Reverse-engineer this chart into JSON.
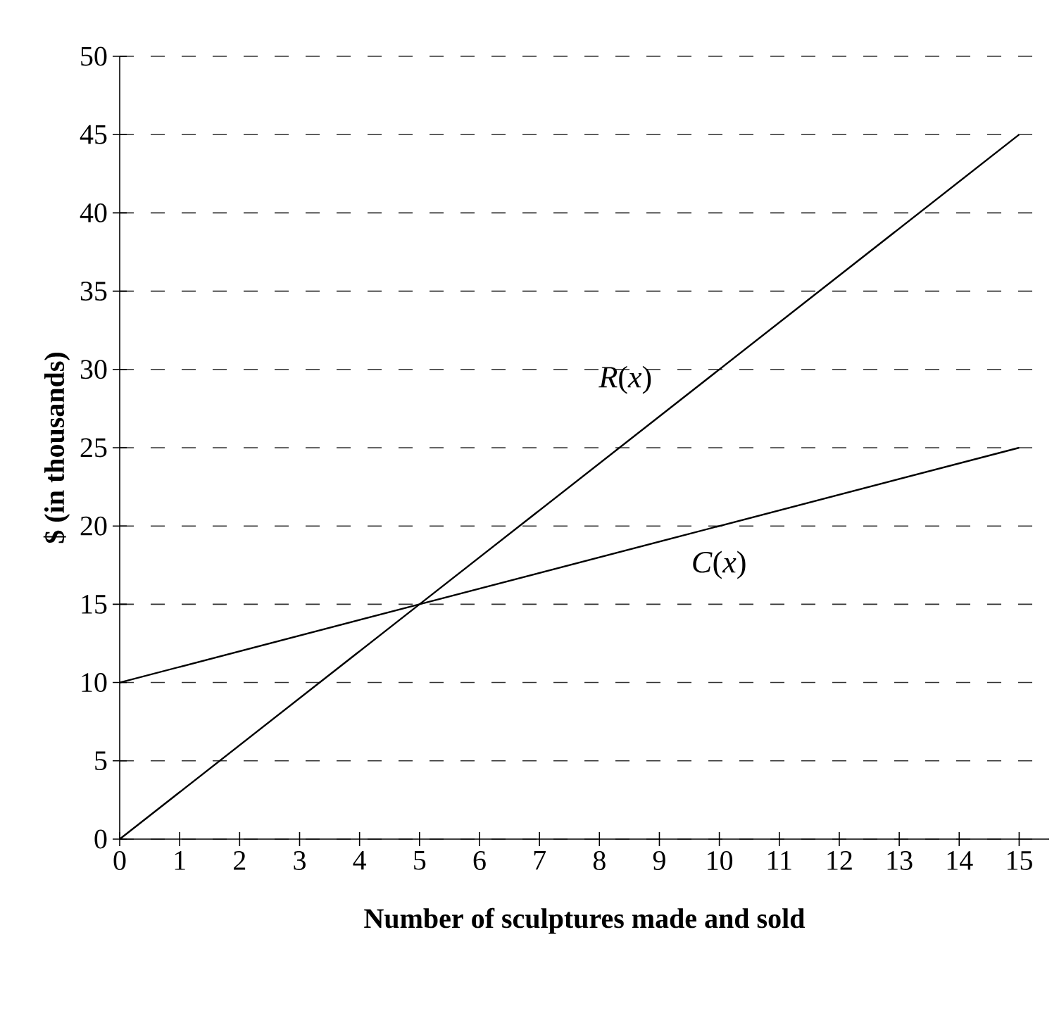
{
  "chart_data": {
    "type": "line",
    "xlabel": "Number of sculptures made and sold",
    "ylabel": "$ (in thousands)",
    "x": [
      0,
      5,
      15
    ],
    "series": [
      {
        "name": "*R*(*x*)",
        "color": "#000000",
        "values": [
          0,
          15,
          45
        ]
      },
      {
        "name": "*C*(*x*)",
        "color": "#000000",
        "values": [
          10,
          15,
          25
        ]
      }
    ],
    "xlim": [
      0,
      15.5
    ],
    "ylim": [
      0,
      50
    ],
    "xticks": [
      0,
      1,
      2,
      3,
      4,
      5,
      6,
      7,
      8,
      9,
      10,
      11,
      12,
      13,
      14,
      15
    ],
    "yticks": [
      0,
      5,
      10,
      15,
      20,
      25,
      30,
      35,
      40,
      45,
      50
    ],
    "grid": "y",
    "legend": false,
    "marker": "none",
    "line_style": "solid"
  }
}
